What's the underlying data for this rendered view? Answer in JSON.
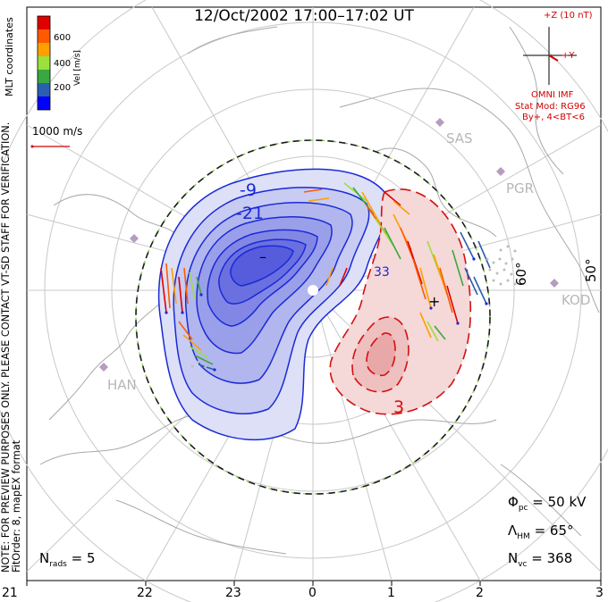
{
  "title": "12/Oct/2002 17:00–17:02 UT",
  "coordinates_label": "MLT coordinates",
  "color_scale": {
    "unit_label": "Vel [m/s]",
    "ticks": [
      "600",
      "400",
      "200"
    ],
    "colors": [
      "#e00000",
      "#ff5a00",
      "#ffa000",
      "#9be03c",
      "#3aa840",
      "#2a5fb0",
      "#0000ff"
    ]
  },
  "reference_vector_label": "1000 m/s",
  "notes": {
    "preview": "NOTE: FOR PREVIEW PURPOSES ONLY. PLEASE CONTACT VT-SD STAFF FOR VERIFICATION.",
    "fit_order": "FitOrder: 8, mapEX format"
  },
  "imf": {
    "axis_z": "+Z (10 nT)",
    "axis_y": "+Y",
    "source": "OMNI IMF",
    "model": "Stat Mod: RG96",
    "condition": "By+, 4<BT<6"
  },
  "stations": [
    "SAS",
    "PGR",
    "KOD",
    "HAN"
  ],
  "latitude_labels": [
    "60°",
    "50°"
  ],
  "contour_labels": [
    "-9",
    "-21",
    "33",
    "3"
  ],
  "marker_min": "–",
  "marker_max": "+",
  "mlt_labels": [
    "21",
    "22",
    "23",
    "0",
    "1",
    "2",
    "3"
  ],
  "stats": {
    "phi_symbol": "Φ",
    "phi_sub": "pc",
    "phi_value": "= 50 kV",
    "lambda_symbol": "Λ",
    "lambda_sub": "HM",
    "lambda_value": "= 65°",
    "nvc_symbol": "N",
    "nvc_sub": "vc",
    "nvc_value": "= 368",
    "nrads_symbol": "N",
    "nrads_sub": "rads",
    "nrads_value": "= 5"
  }
}
